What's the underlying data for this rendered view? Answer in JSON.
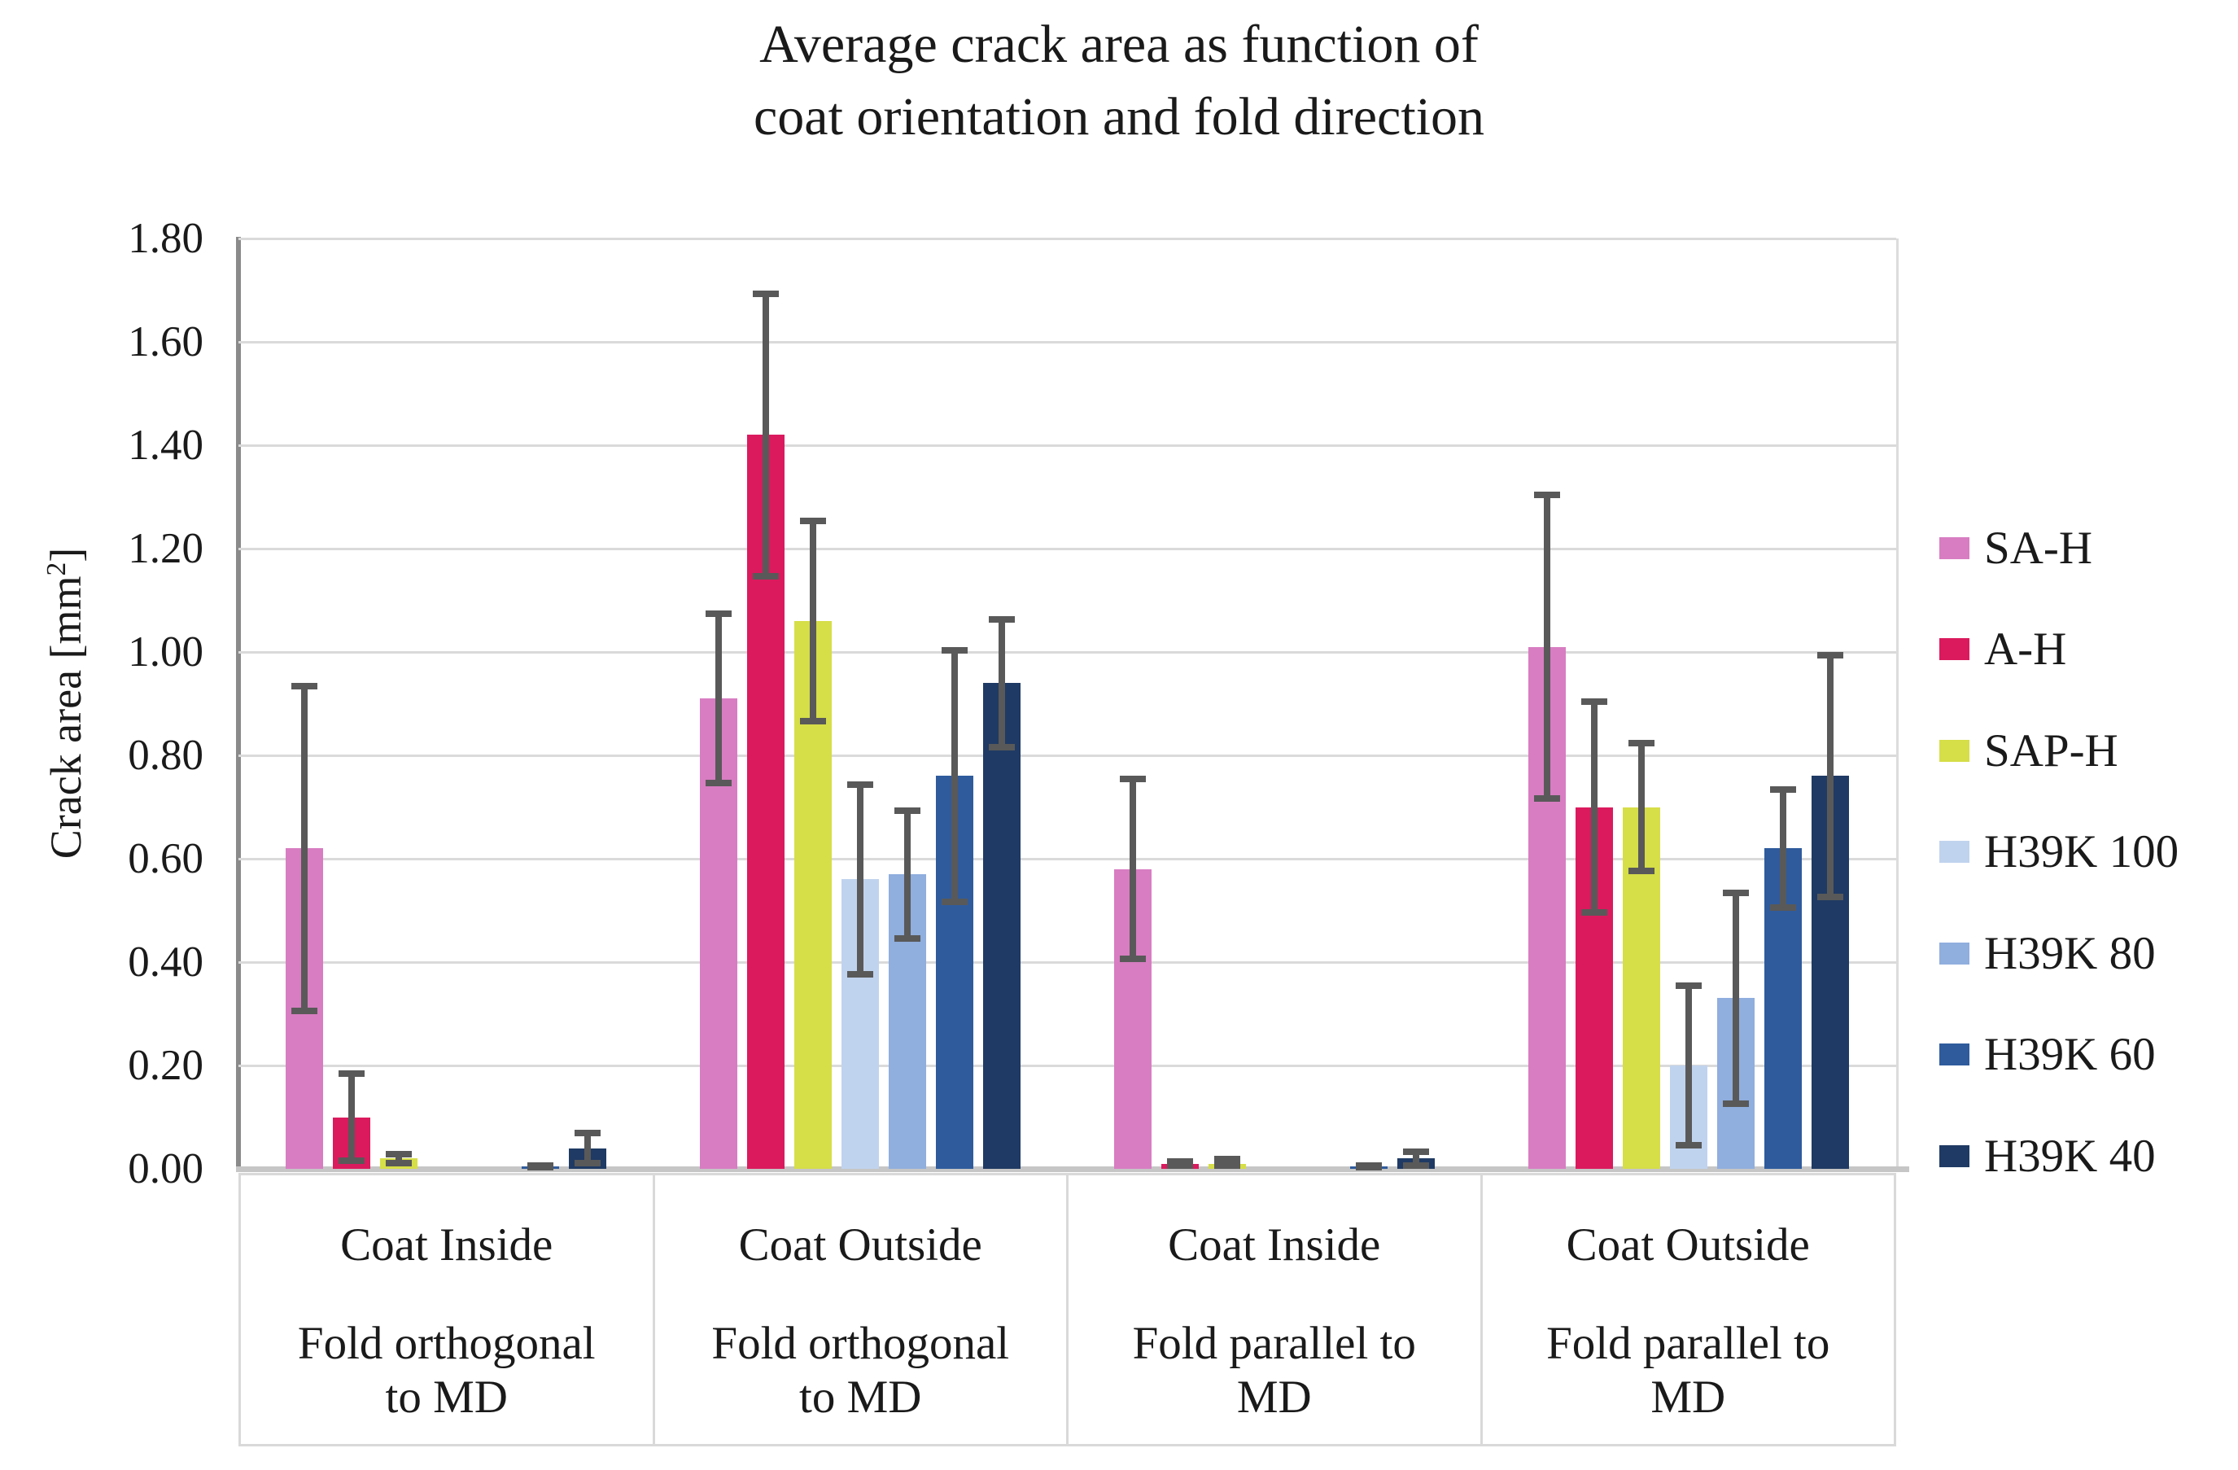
{
  "chart_data": {
    "type": "bar",
    "title": "Average crack area as function of\ncoat orientation and fold direction",
    "ylabel": {
      "prefix": "Crack area [mm",
      "superscript": "2",
      "suffix": "]"
    },
    "ylim": [
      0.0,
      1.8
    ],
    "ytick_step": 0.2,
    "ytick_labels": [
      "0.00",
      "0.20",
      "0.40",
      "0.60",
      "0.80",
      "1.00",
      "1.20",
      "1.40",
      "1.60",
      "1.80"
    ],
    "grid": true,
    "legend_position": "right",
    "error_bars": true,
    "categories": [
      {
        "coat": "Coat Inside",
        "fold": "Fold orthogonal\nto MD"
      },
      {
        "coat": "Coat Outside",
        "fold": "Fold orthogonal\nto MD"
      },
      {
        "coat": "Coat Inside",
        "fold": "Fold parallel to\nMD"
      },
      {
        "coat": "Coat Outside",
        "fold": "Fold parallel to\nMD"
      }
    ],
    "series": [
      {
        "name": "SA-H",
        "color": "#D87DC2",
        "values": [
          0.62,
          0.91,
          0.58,
          1.01
        ],
        "errors": [
          0.32,
          0.17,
          0.18,
          0.3
        ]
      },
      {
        "name": "A-H",
        "color": "#DB1A5E",
        "values": [
          0.1,
          1.42,
          0.01,
          0.7
        ],
        "errors": [
          0.09,
          0.28,
          0.01,
          0.21
        ]
      },
      {
        "name": "SAP-H",
        "color": "#D6DE48",
        "values": [
          0.02,
          1.06,
          0.01,
          0.7
        ],
        "errors": [
          0.015,
          0.2,
          0.015,
          0.13
        ]
      },
      {
        "name": "H39K 100",
        "color": "#C0D3EE",
        "values": [
          0.0,
          0.56,
          0.0,
          0.2
        ],
        "errors": [
          0,
          0.19,
          0,
          0.16
        ]
      },
      {
        "name": "H39K 80",
        "color": "#90AEDE",
        "values": [
          0.0,
          0.57,
          0.0,
          0.33
        ],
        "errors": [
          0,
          0.13,
          0,
          0.21
        ]
      },
      {
        "name": "H39K 60",
        "color": "#2F5B9D",
        "values": [
          0.005,
          0.76,
          0.005,
          0.62
        ],
        "errors": [
          0.005,
          0.25,
          0.005,
          0.12
        ]
      },
      {
        "name": "H39K 40",
        "color": "#1F3A64",
        "values": [
          0.04,
          0.94,
          0.02,
          0.76
        ],
        "errors": [
          0.035,
          0.13,
          0.02,
          0.24
        ]
      }
    ],
    "colors": {
      "gridline": "#DADADA",
      "axis_line": "#8A8A8A",
      "baseline": "#C6C6C6",
      "error_bar": "#595959",
      "label_box_border": "#D9D9D9",
      "text": "#1A1A1A"
    }
  }
}
